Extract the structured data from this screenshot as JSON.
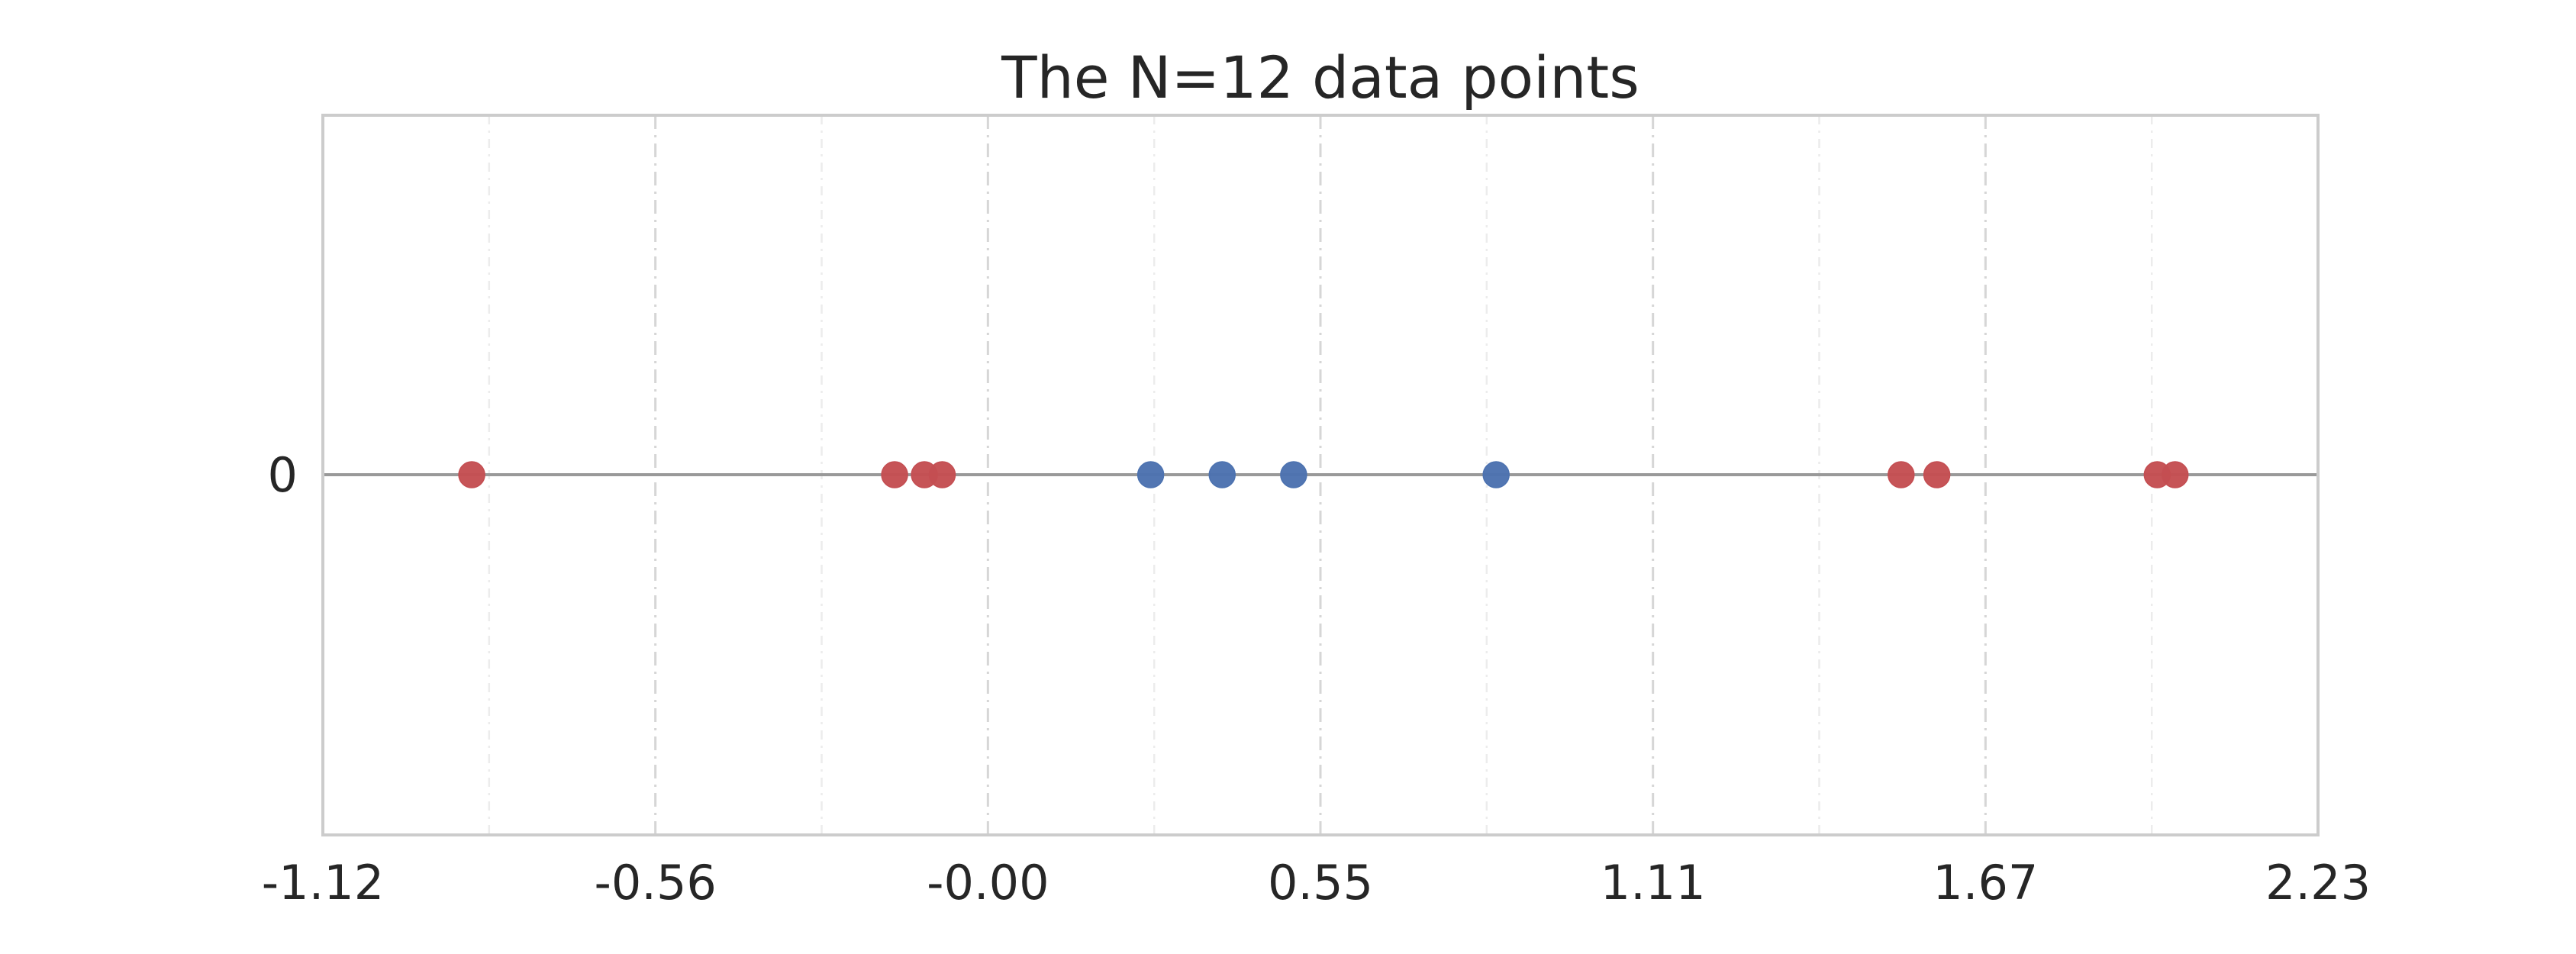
{
  "chart_data": {
    "type": "scatter",
    "title": "The N=12 data points",
    "xlabel": "",
    "ylabel": "",
    "xlim": [
      -1.12,
      2.23
    ],
    "x_ticks": [
      "-1.12",
      "-0.56",
      "-0.00",
      "0.55",
      "1.11",
      "1.67",
      "2.23"
    ],
    "y_ticks": [
      "0"
    ],
    "grid": "vertical dash-dot major gridlines with faint minor gridlines",
    "legend": "none",
    "series": [
      {
        "color": "#c44e52",
        "points": [
          {
            "x": -0.87,
            "y": 0
          },
          {
            "x": -0.16,
            "y": 0
          },
          {
            "x": -0.11,
            "y": 0
          },
          {
            "x": -0.08,
            "y": 0
          },
          {
            "x": 1.53,
            "y": 0
          },
          {
            "x": 1.59,
            "y": 0
          },
          {
            "x": 1.96,
            "y": 0
          },
          {
            "x": 1.99,
            "y": 0
          }
        ]
      },
      {
        "color": "#4c72b0",
        "points": [
          {
            "x": 0.27,
            "y": 0
          },
          {
            "x": 0.39,
            "y": 0
          },
          {
            "x": 0.51,
            "y": 0
          },
          {
            "x": 0.85,
            "y": 0
          }
        ]
      }
    ]
  }
}
